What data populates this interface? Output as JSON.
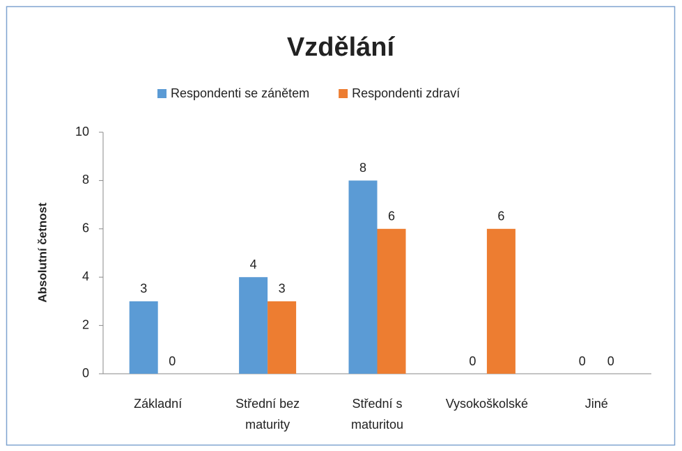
{
  "chart_data": {
    "type": "bar",
    "title": "Vzdělání",
    "categories": [
      "Základní",
      "Střední bez maturity",
      "Střední s maturitou",
      "Vysokoškolské",
      "Jiné"
    ],
    "series": [
      {
        "name": "Respondenti se zánětem",
        "color": "#5b9bd5",
        "values": [
          3,
          4,
          8,
          0,
          0
        ]
      },
      {
        "name": "Respondenti zdraví",
        "color": "#ed7d31",
        "values": [
          0,
          3,
          6,
          6,
          0
        ]
      }
    ],
    "ylabel": "Absolutní četnost",
    "ylim": [
      0,
      10
    ],
    "yticks": [
      0,
      2,
      4,
      6,
      8,
      10
    ],
    "grid": false,
    "legend": "top"
  }
}
